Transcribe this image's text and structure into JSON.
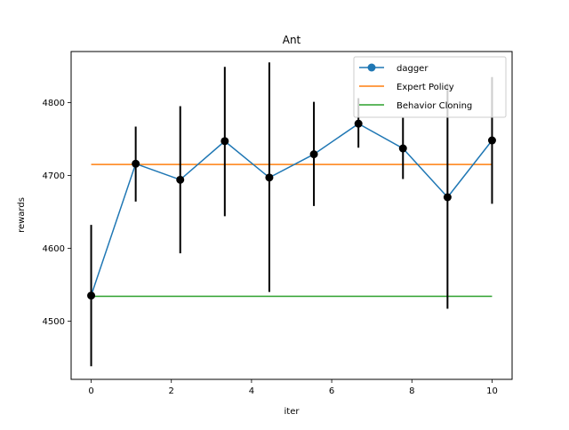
{
  "chart_data": {
    "type": "line",
    "title": "Ant",
    "xlabel": "iter",
    "ylabel": "rewards",
    "xlim": [
      -0.5,
      10.5
    ],
    "ylim": [
      4420,
      4870
    ],
    "xticks": [
      0,
      2,
      4,
      6,
      8,
      10
    ],
    "yticks": [
      4500,
      4600,
      4700,
      4800
    ],
    "grid": false,
    "legend_position": "top-right",
    "series": [
      {
        "name": "dagger",
        "kind": "line-markers-errorbars",
        "color": "#1f77b4",
        "x": [
          0,
          1.111,
          2.222,
          3.333,
          4.444,
          5.556,
          6.667,
          7.778,
          8.889,
          10
        ],
        "y": [
          4535,
          4716,
          4694,
          4747,
          4697,
          4729,
          4771,
          4737,
          4670,
          4748
        ],
        "yerr_low": [
          4438,
          4664,
          4593,
          4644,
          4540,
          4658,
          4738,
          4695,
          4517,
          4661
        ],
        "yerr_high": [
          4632,
          4767,
          4795,
          4849,
          4855,
          4801,
          4806,
          4779,
          4826,
          4835
        ]
      },
      {
        "name": "Expert Policy",
        "kind": "hline",
        "color": "#ff7f0e",
        "x": [
          0,
          10
        ],
        "y": [
          4715,
          4715
        ]
      },
      {
        "name": "Behavior Cloning",
        "kind": "hline",
        "color": "#2ca02c",
        "x": [
          0,
          10
        ],
        "y": [
          4534,
          4534
        ]
      }
    ]
  }
}
